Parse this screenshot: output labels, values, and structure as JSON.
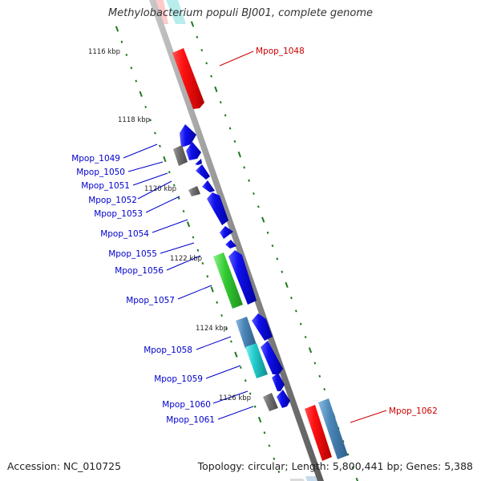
{
  "title": "Methylobacterium populi BJ001, complete genome",
  "footer": {
    "accession": "Accession: NC_010725",
    "summary": "Topology: circular; Length: 5,800,441 bp; Genes: 5,388"
  },
  "colors": {
    "backbone": "#8c8c8c",
    "tick": "#1e7a1e",
    "forward_gene": "#e00000",
    "reverse_gene": "#0000dd",
    "label_forward": "#cc0000",
    "label_reverse": "#0000cc",
    "rna_gray": "#6e6e6e",
    "rna_green": "#33cc33",
    "rna_cyan": "#22cccc",
    "rna_steel": "#4a86b8"
  },
  "kbp_labels": [
    "1116 kbp",
    "1118 kbp",
    "1120 kbp",
    "1122 kbp",
    "1124 kbp",
    "1126 kbp"
  ],
  "gene_labels": [
    "Mpop_1048",
    "Mpop_1049",
    "Mpop_1050",
    "Mpop_1051",
    "Mpop_1052",
    "Mpop_1053",
    "Mpop_1054",
    "Mpop_1055",
    "Mpop_1056",
    "Mpop_1057",
    "Mpop_1058",
    "Mpop_1059",
    "Mpop_1060",
    "Mpop_1061",
    "Mpop_1062"
  ]
}
